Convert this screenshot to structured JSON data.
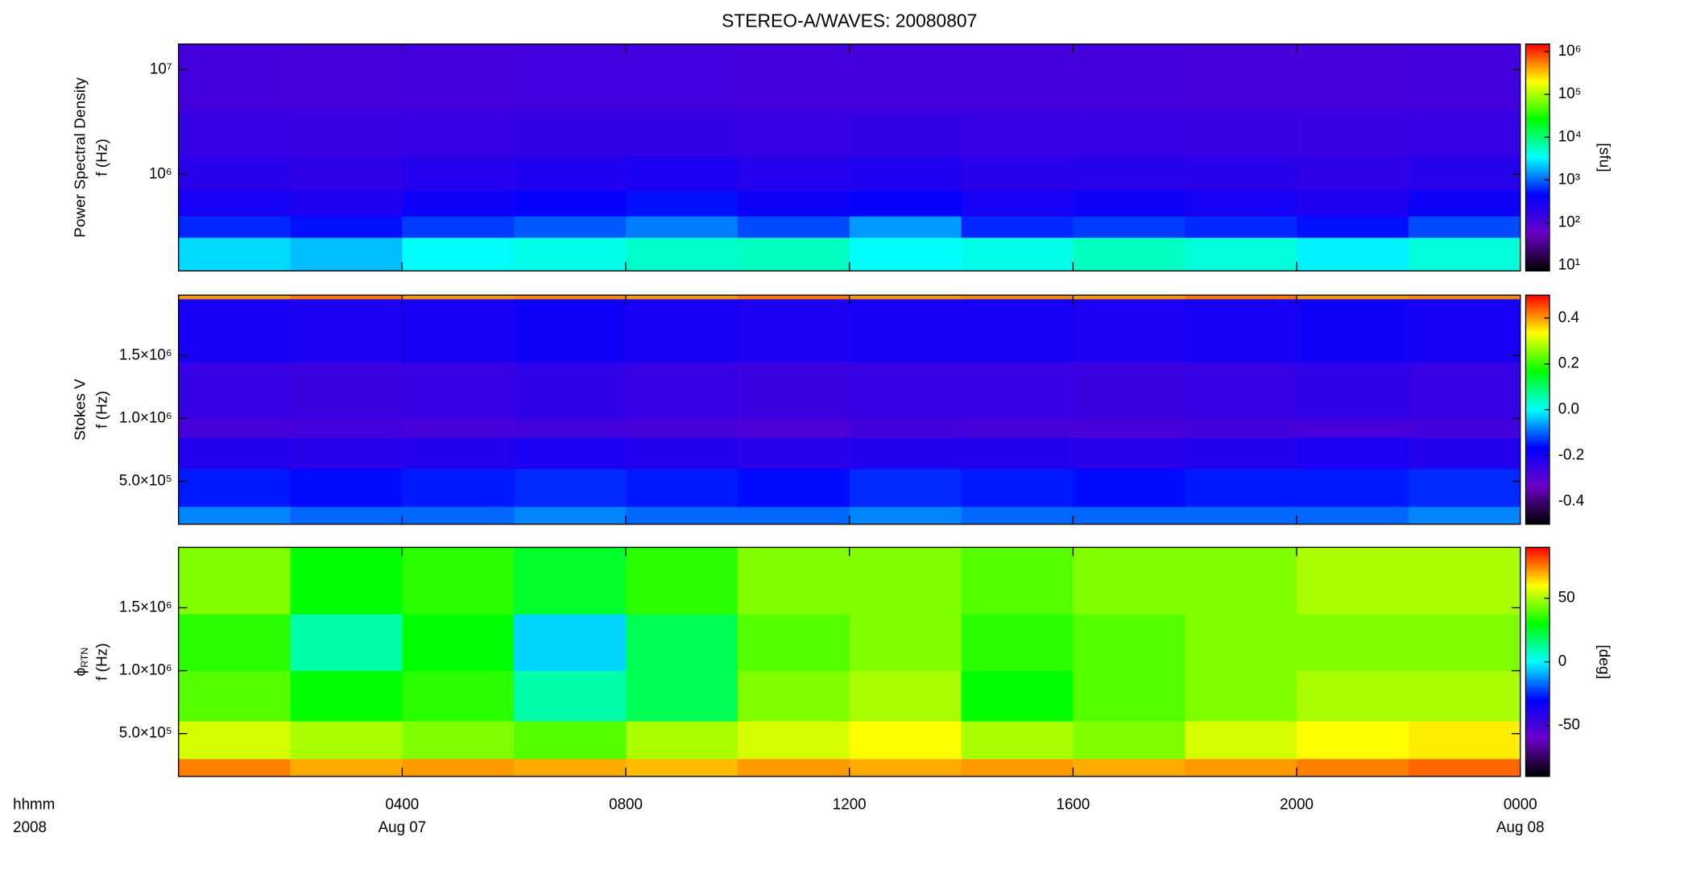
{
  "title": "STEREO-A/WAVES: 20080807",
  "x_axis": {
    "label": [
      "hhmm",
      "2008"
    ],
    "xlim": [
      0,
      24
    ],
    "xticks": [
      {
        "value": 4,
        "label": "0400"
      },
      {
        "value": 8,
        "label": "0800"
      },
      {
        "value": 12,
        "label": "1200"
      },
      {
        "value": 16,
        "label": "1600"
      },
      {
        "value": 20,
        "label": "2000"
      },
      {
        "value": 24,
        "label": "0000"
      }
    ],
    "date_labels": [
      {
        "value": 4,
        "label": "Aug 07"
      },
      {
        "value": 24,
        "label": "Aug 08"
      }
    ]
  },
  "chart_data": [
    {
      "type": "heatmap",
      "ylabel": [
        "Power Spectral Density",
        "f (Hz)"
      ],
      "ylog": true,
      "ylim": [
        120000,
        17500000
      ],
      "yticks": [
        {
          "value": 1000000,
          "label": "10⁶"
        },
        {
          "value": 10000000,
          "label": "10⁷"
        }
      ],
      "x_bins": [
        0,
        2,
        4,
        6,
        8,
        10,
        12,
        14,
        16,
        18,
        20,
        22,
        24
      ],
      "y_bins": [
        120000,
        250000,
        400000,
        700000,
        1500000,
        4000000,
        17500000
      ],
      "values": [
        [
          2500,
          2000,
          3500,
          4000,
          5000,
          5500,
          3500,
          4000,
          5500,
          4500,
          3000,
          4500
        ],
        [
          600,
          500,
          700,
          900,
          1200,
          800,
          1500,
          600,
          700,
          600,
          500,
          800
        ],
        [
          300,
          250,
          350,
          400,
          500,
          350,
          400,
          300,
          350,
          300,
          250,
          350
        ],
        [
          200,
          180,
          220,
          240,
          260,
          220,
          240,
          200,
          210,
          200,
          180,
          210
        ],
        [
          160,
          150,
          160,
          170,
          170,
          160,
          165,
          160,
          160,
          155,
          150,
          160
        ],
        [
          120,
          115,
          120,
          125,
          125,
          120,
          120,
          118,
          118,
          116,
          115,
          118
        ]
      ],
      "colormap": [
        "#000000",
        "#6a00c8",
        "#0000ff",
        "#00ffff",
        "#00ff00",
        "#ffff00",
        "#ff0000"
      ],
      "colorbar": {
        "zlog": true,
        "zlim": [
          7.5,
          1500000
        ],
        "label": "[sfu]",
        "zticks": [
          {
            "value": 10,
            "label": "10¹"
          },
          {
            "value": 100,
            "label": "10²"
          },
          {
            "value": 1000,
            "label": "10³"
          },
          {
            "value": 10000,
            "label": "10⁴"
          },
          {
            "value": 100000,
            "label": "10⁵"
          },
          {
            "value": 1000000,
            "label": "10⁶"
          }
        ]
      }
    },
    {
      "type": "heatmap",
      "ylabel": [
        "Stokes V",
        "f (Hz)"
      ],
      "ylog": false,
      "ylim": [
        160000,
        1980000
      ],
      "yticks": [
        {
          "value": 500000,
          "label": "5.0×10⁵"
        },
        {
          "value": 1000000,
          "label": "1.0×10⁶"
        },
        {
          "value": 1500000,
          "label": "1.5×10⁶"
        }
      ],
      "x_bins": [
        0,
        2,
        4,
        6,
        8,
        10,
        12,
        14,
        16,
        18,
        20,
        22,
        24
      ],
      "y_bins": [
        160000,
        300000,
        600000,
        850000,
        1000000,
        1450000,
        1950000,
        1980000
      ],
      "values": [
        [
          -0.08,
          -0.1,
          -0.1,
          -0.08,
          -0.1,
          -0.1,
          -0.08,
          -0.1,
          -0.1,
          -0.1,
          -0.1,
          -0.08
        ],
        [
          -0.15,
          -0.16,
          -0.15,
          -0.14,
          -0.15,
          -0.16,
          -0.14,
          -0.15,
          -0.16,
          -0.15,
          -0.15,
          -0.14
        ],
        [
          -0.22,
          -0.23,
          -0.22,
          -0.21,
          -0.22,
          -0.23,
          -0.22,
          -0.22,
          -0.23,
          -0.22,
          -0.21,
          -0.22
        ],
        [
          -0.28,
          -0.27,
          -0.28,
          -0.27,
          -0.28,
          -0.29,
          -0.27,
          -0.28,
          -0.28,
          -0.27,
          -0.28,
          -0.27
        ],
        [
          -0.25,
          -0.26,
          -0.25,
          -0.24,
          -0.25,
          -0.26,
          -0.25,
          -0.25,
          -0.26,
          -0.25,
          -0.24,
          -0.25
        ],
        [
          -0.2,
          -0.21,
          -0.2,
          -0.19,
          -0.2,
          -0.21,
          -0.2,
          -0.2,
          -0.21,
          -0.2,
          -0.19,
          -0.2
        ],
        [
          0.4,
          0.42,
          0.4,
          0.41,
          0.4,
          0.42,
          0.4,
          0.41,
          0.4,
          0.42,
          0.4,
          0.41
        ]
      ],
      "colormap": [
        "#000000",
        "#6a00c8",
        "#0000ff",
        "#00ffff",
        "#00ff00",
        "#ffff00",
        "#ff0000"
      ],
      "colorbar": {
        "zlog": false,
        "zlim": [
          -0.5,
          0.5
        ],
        "zticks": [
          -0.4,
          -0.2,
          {
            "value": 0,
            "label": "0.0"
          },
          0.2,
          0.4
        ]
      }
    },
    {
      "type": "heatmap",
      "ylabel": [
        "f (Hz)"
      ],
      "ylabel_symbol": "ϕ",
      "ylabel_subscript": "RTN",
      "ylog": false,
      "ylim": [
        160000,
        1980000
      ],
      "yticks": [
        {
          "value": 500000,
          "label": "5.0×10⁵"
        },
        {
          "value": 1000000,
          "label": "1.0×10⁶"
        },
        {
          "value": 1500000,
          "label": "1.5×10⁶"
        }
      ],
      "x_bins": [
        0,
        2,
        4,
        6,
        8,
        10,
        12,
        14,
        16,
        18,
        20,
        22,
        24
      ],
      "y_bins": [
        160000,
        300000,
        600000,
        1000000,
        1450000,
        1980000
      ],
      "values": [
        [
          75,
          70,
          72,
          70,
          68,
          72,
          70,
          72,
          70,
          72,
          75,
          78
        ],
        [
          55,
          50,
          45,
          40,
          50,
          55,
          60,
          50,
          45,
          55,
          60,
          62
        ],
        [
          40,
          30,
          35,
          10,
          20,
          45,
          50,
          30,
          40,
          45,
          50,
          50
        ],
        [
          35,
          10,
          30,
          -5,
          20,
          40,
          45,
          35,
          40,
          45,
          45,
          45
        ],
        [
          45,
          30,
          35,
          25,
          35,
          45,
          45,
          40,
          45,
          45,
          50,
          50
        ]
      ],
      "colormap": [
        "#000000",
        "#6a00c8",
        "#0000ff",
        "#00ffff",
        "#00ff00",
        "#ffff00",
        "#ff0000"
      ],
      "colorbar": {
        "zlog": false,
        "zlim": [
          -90,
          90
        ],
        "label": "[deg]",
        "zticks": [
          -50,
          0,
          50
        ]
      }
    }
  ]
}
